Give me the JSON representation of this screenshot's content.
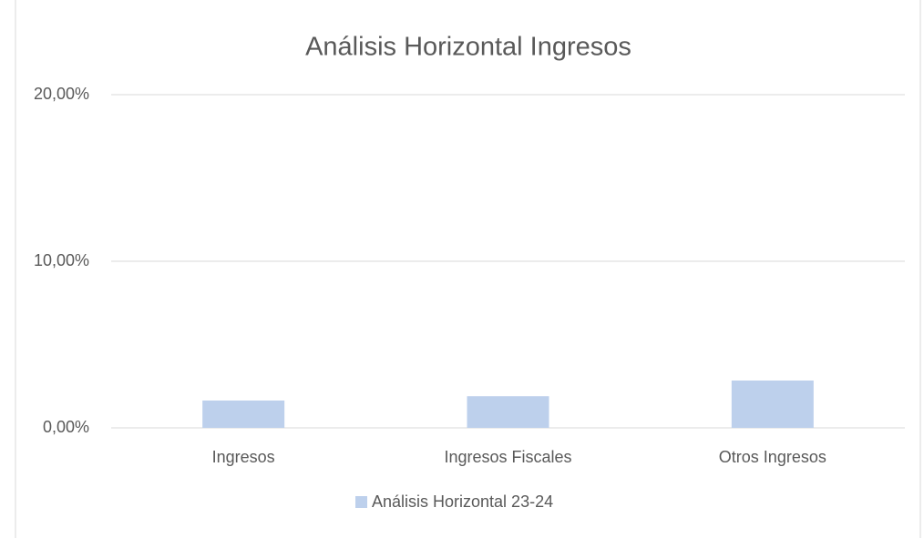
{
  "chart_data": {
    "type": "bar",
    "title": "Análisis Horizontal Ingresos",
    "categories": [
      "Ingresos",
      "Ingresos Fiscales",
      "Otros Ingresos"
    ],
    "series": [
      {
        "name": "Análisis Horizontal 23-24",
        "color": "#bdd0ec",
        "values": [
          1.64,
          1.9,
          2.84
        ]
      }
    ],
    "ylim": [
      0,
      20
    ],
    "yticks": [
      {
        "value": 0,
        "label": "0,00%"
      },
      {
        "value": 10,
        "label": "10,00%"
      },
      {
        "value": 20,
        "label": "20,00%"
      }
    ],
    "grid": true,
    "legend": "bottom"
  }
}
